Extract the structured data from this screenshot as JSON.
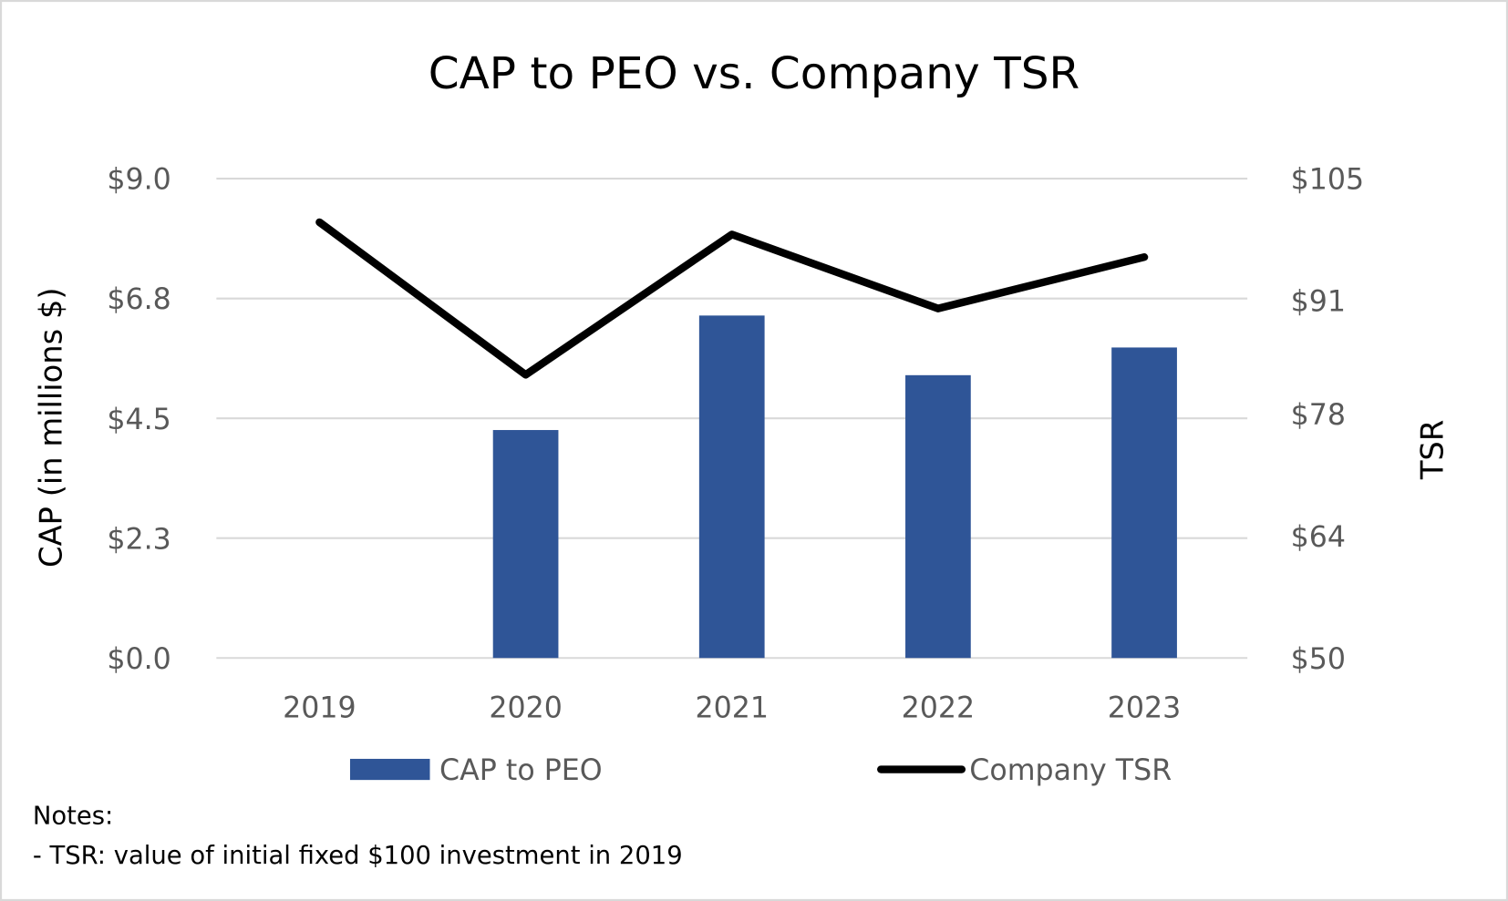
{
  "chart_data": {
    "type": "bar+line",
    "title": "CAP to PEO vs. Company TSR",
    "categories": [
      "2019",
      "2020",
      "2021",
      "2022",
      "2023"
    ],
    "y_left": {
      "label": "CAP (in millions $)",
      "range": [
        0,
        9
      ],
      "ticks": [
        0,
        2.25,
        4.5,
        6.75,
        9
      ],
      "tick_labels": [
        "$0.0",
        "$2.3",
        "$4.5",
        "$6.8",
        "$9.0"
      ]
    },
    "y_right": {
      "label": "TSR",
      "range": [
        50,
        105
      ],
      "ticks": [
        50,
        64,
        78,
        91,
        105
      ],
      "tick_labels": [
        "$50",
        "$64",
        "$78",
        "$91",
        "$105"
      ]
    },
    "series": [
      {
        "name": "CAP to PEO",
        "type": "bar",
        "axis": "left",
        "color": "#2F5597",
        "values": [
          null,
          4.28,
          6.43,
          5.31,
          5.83
        ]
      },
      {
        "name": "Company TSR",
        "type": "line",
        "axis": "right",
        "color": "#000000",
        "values": [
          100.0,
          82.5,
          98.6,
          90.1,
          96.0
        ]
      }
    ],
    "grid": true,
    "legend": "bottom"
  },
  "notes": {
    "heading": "Notes:",
    "lines": [
      "- TSR: value of initial fixed $100 investment in 2019"
    ]
  }
}
